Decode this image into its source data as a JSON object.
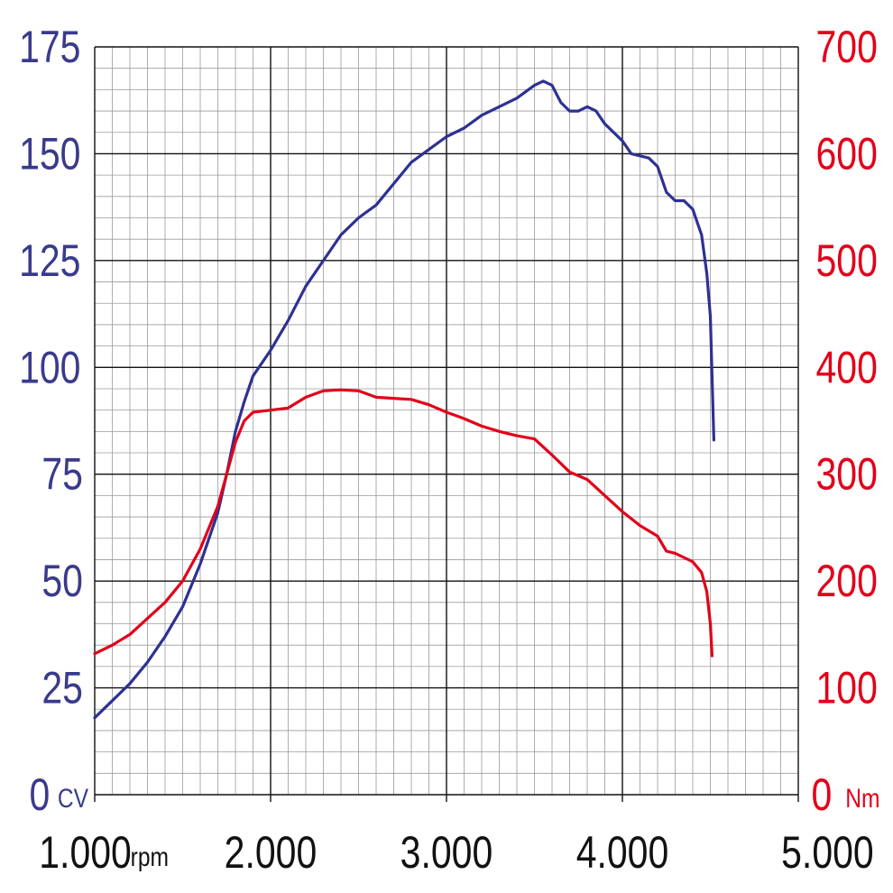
{
  "chart_data": {
    "type": "line",
    "x_ticks": [
      {
        "value": 1000,
        "label": "1.000"
      },
      {
        "value": 2000,
        "label": "2.000"
      },
      {
        "value": 3000,
        "label": "3.000"
      },
      {
        "value": 4000,
        "label": "4.000"
      },
      {
        "value": 5000,
        "label": "5.000"
      }
    ],
    "xlabel": "rpm",
    "xlim": [
      1000,
      5000
    ],
    "y_left": {
      "label": "CV",
      "ticks": [
        0,
        25,
        50,
        75,
        100,
        125,
        150,
        175
      ],
      "lim": [
        0,
        175
      ],
      "color": "#3a3a8c"
    },
    "y_right": {
      "label": "Nm",
      "ticks": [
        0,
        100,
        200,
        300,
        400,
        500,
        600,
        700
      ],
      "lim": [
        0,
        700
      ],
      "color": "#e2001a"
    },
    "grid": true,
    "series": [
      {
        "axis": "left",
        "color": "#2e3192",
        "points": [
          [
            1000,
            18
          ],
          [
            1100,
            22
          ],
          [
            1200,
            26
          ],
          [
            1300,
            31
          ],
          [
            1400,
            37
          ],
          [
            1500,
            44
          ],
          [
            1600,
            54
          ],
          [
            1700,
            66
          ],
          [
            1750,
            75
          ],
          [
            1800,
            85
          ],
          [
            1850,
            92
          ],
          [
            1900,
            98
          ],
          [
            1950,
            101
          ],
          [
            2000,
            104
          ],
          [
            2100,
            111
          ],
          [
            2200,
            119
          ],
          [
            2300,
            125
          ],
          [
            2400,
            131
          ],
          [
            2500,
            135
          ],
          [
            2600,
            138
          ],
          [
            2700,
            143
          ],
          [
            2800,
            148
          ],
          [
            2900,
            151
          ],
          [
            3000,
            154
          ],
          [
            3100,
            156
          ],
          [
            3200,
            159
          ],
          [
            3300,
            161
          ],
          [
            3400,
            163
          ],
          [
            3500,
            166
          ],
          [
            3550,
            167
          ],
          [
            3600,
            166
          ],
          [
            3650,
            162
          ],
          [
            3700,
            160
          ],
          [
            3750,
            160
          ],
          [
            3800,
            161
          ],
          [
            3850,
            160
          ],
          [
            3900,
            157
          ],
          [
            4000,
            153
          ],
          [
            4050,
            150
          ],
          [
            4150,
            149
          ],
          [
            4200,
            147
          ],
          [
            4250,
            141
          ],
          [
            4300,
            139
          ],
          [
            4350,
            139
          ],
          [
            4400,
            137
          ],
          [
            4450,
            131
          ],
          [
            4480,
            122
          ],
          [
            4500,
            112
          ],
          [
            4510,
            98
          ],
          [
            4520,
            83
          ]
        ]
      },
      {
        "axis": "right",
        "color": "#e2001a",
        "points": [
          [
            1000,
            132
          ],
          [
            1100,
            140
          ],
          [
            1200,
            150
          ],
          [
            1300,
            165
          ],
          [
            1400,
            180
          ],
          [
            1500,
            200
          ],
          [
            1600,
            230
          ],
          [
            1700,
            270
          ],
          [
            1750,
            300
          ],
          [
            1800,
            330
          ],
          [
            1850,
            350
          ],
          [
            1900,
            358
          ],
          [
            2000,
            360
          ],
          [
            2100,
            362
          ],
          [
            2200,
            372
          ],
          [
            2300,
            378
          ],
          [
            2400,
            379
          ],
          [
            2500,
            378
          ],
          [
            2600,
            372
          ],
          [
            2700,
            371
          ],
          [
            2800,
            370
          ],
          [
            2900,
            365
          ],
          [
            3000,
            358
          ],
          [
            3100,
            352
          ],
          [
            3200,
            345
          ],
          [
            3300,
            340
          ],
          [
            3400,
            336
          ],
          [
            3500,
            333
          ],
          [
            3600,
            318
          ],
          [
            3700,
            302
          ],
          [
            3800,
            295
          ],
          [
            3900,
            280
          ],
          [
            4000,
            265
          ],
          [
            4100,
            252
          ],
          [
            4200,
            242
          ],
          [
            4250,
            228
          ],
          [
            4300,
            226
          ],
          [
            4400,
            218
          ],
          [
            4450,
            208
          ],
          [
            4480,
            190
          ],
          [
            4500,
            160
          ],
          [
            4510,
            130
          ]
        ]
      }
    ]
  }
}
